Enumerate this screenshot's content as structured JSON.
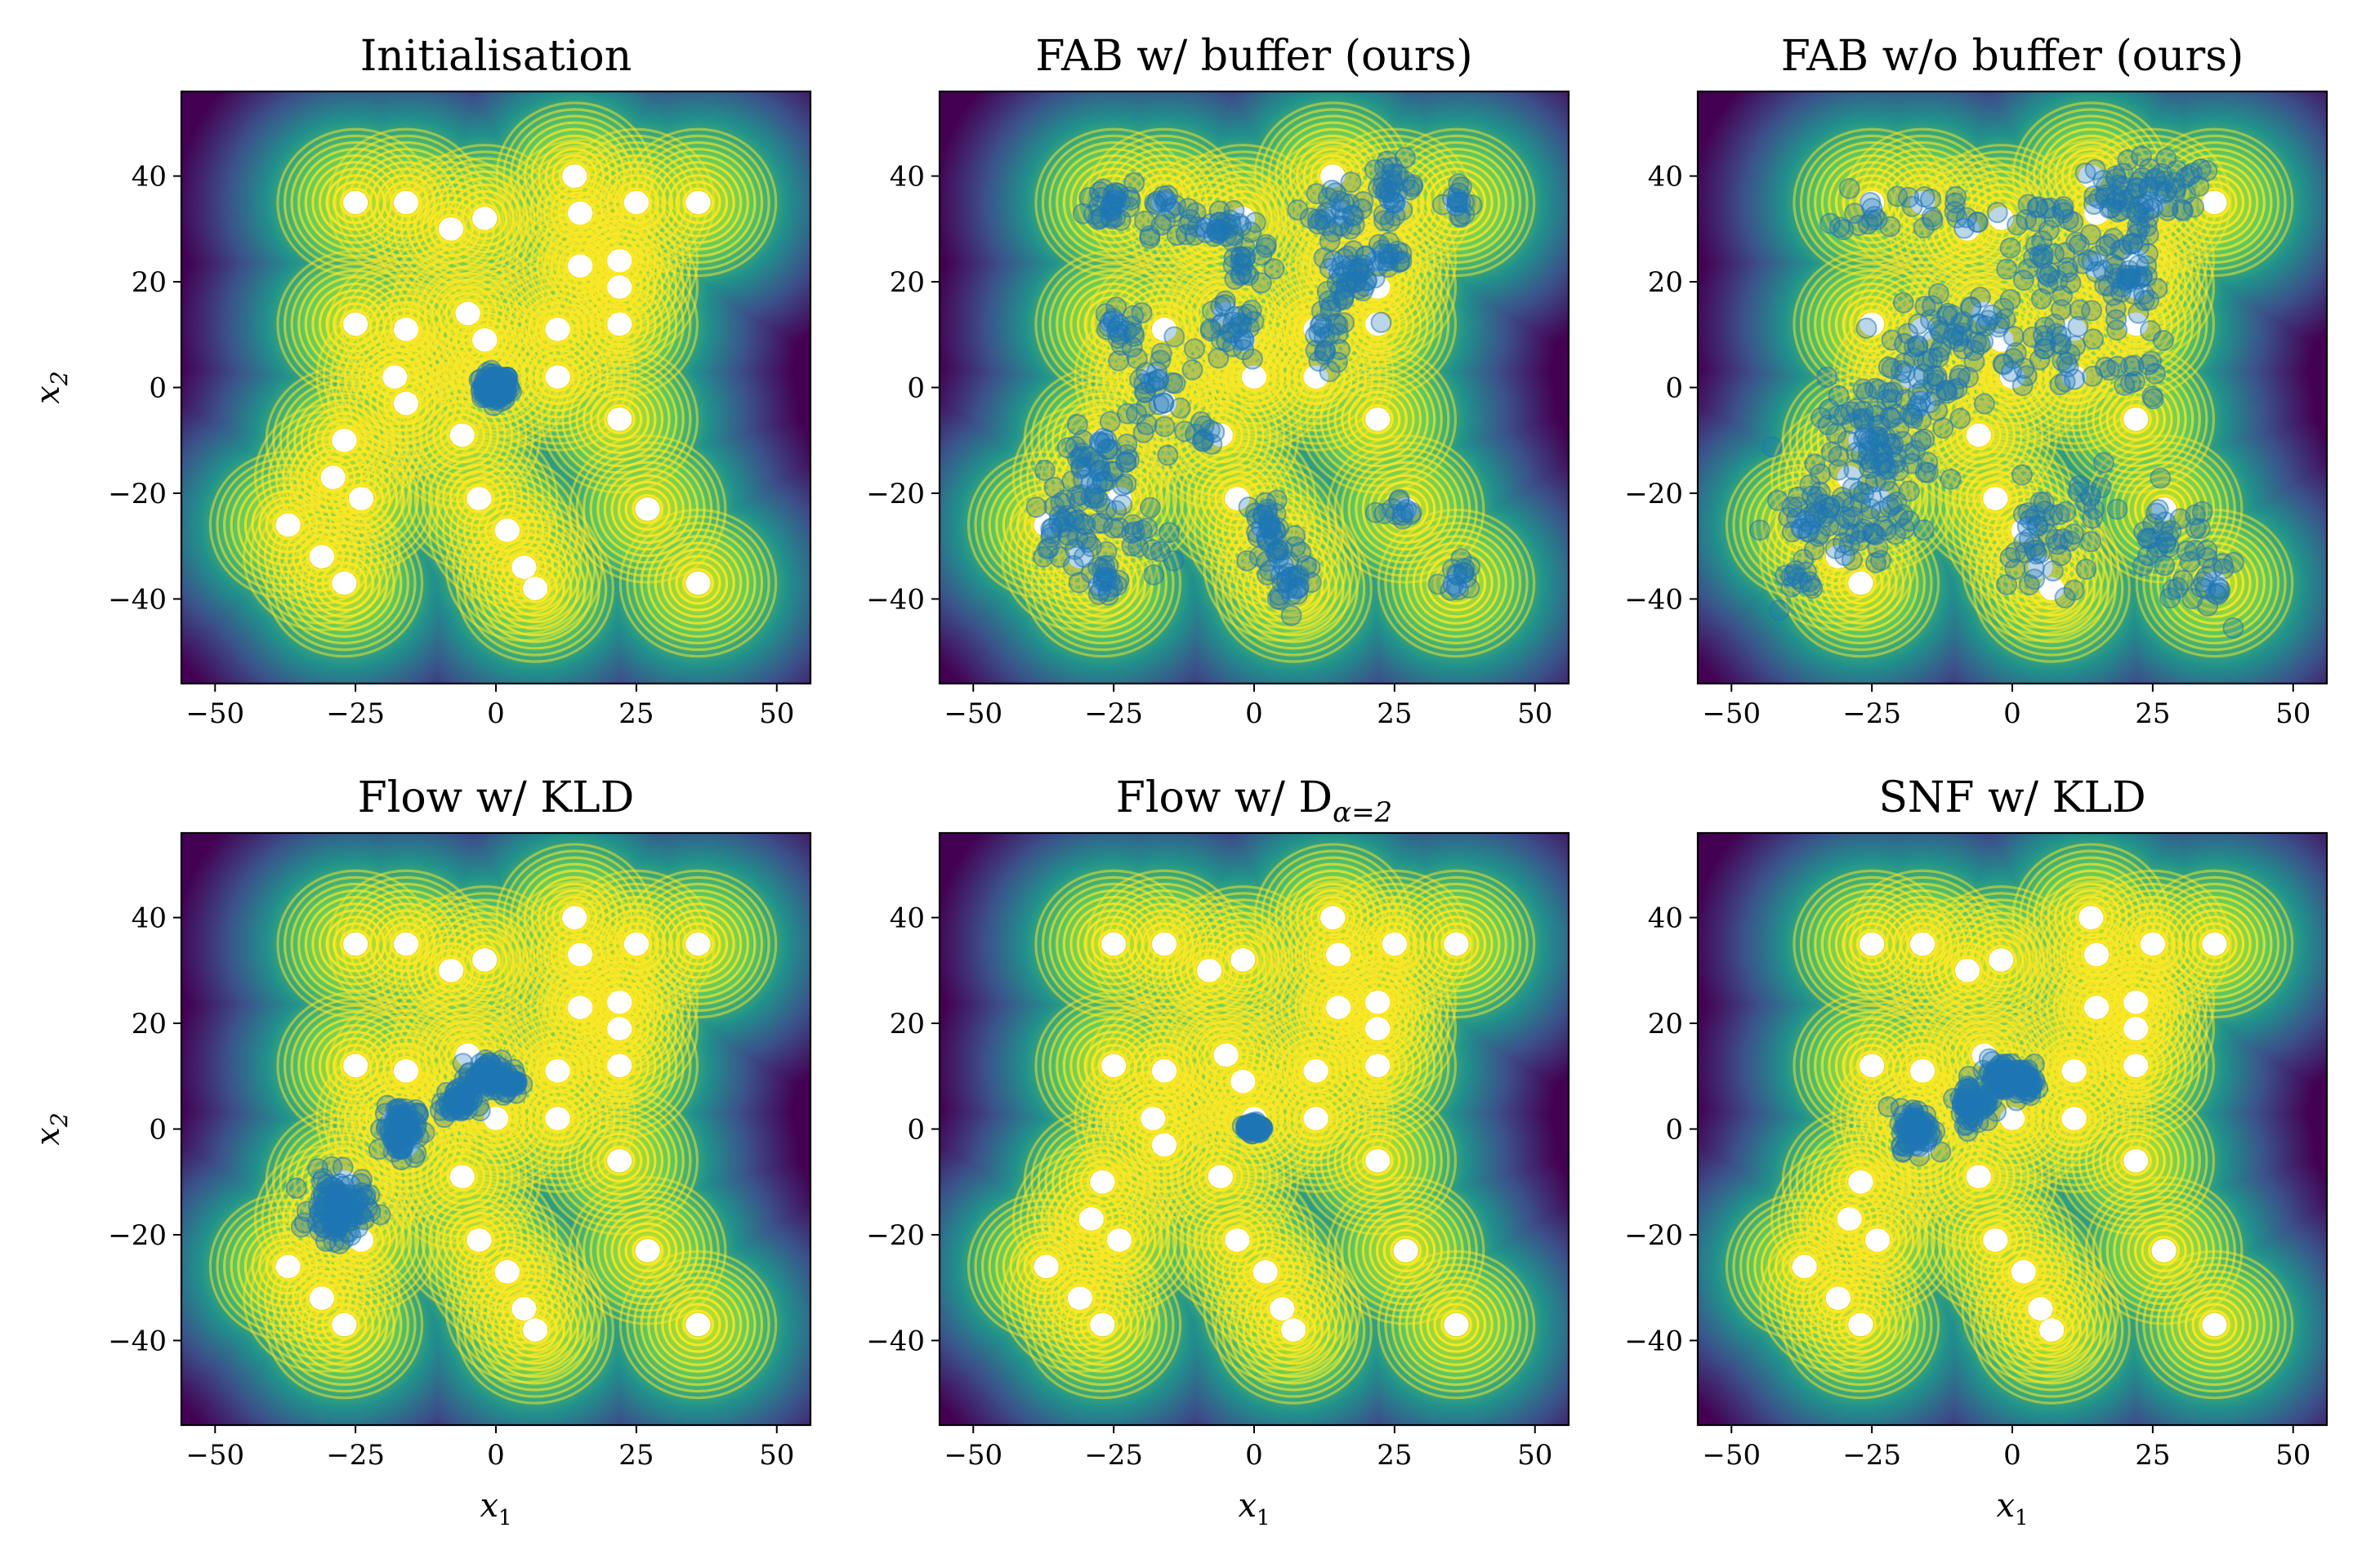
{
  "colors": {
    "bg_low": "#440154",
    "bg_mid": "#21918c",
    "bg_high": "#7ad151",
    "contour": "#fde725",
    "samples": "#1f77b4"
  },
  "target_modes": [
    [
      -25,
      35
    ],
    [
      -16,
      35
    ],
    [
      -8,
      30
    ],
    [
      -2,
      32
    ],
    [
      14,
      40
    ],
    [
      15,
      33
    ],
    [
      25,
      35
    ],
    [
      36,
      35
    ],
    [
      15,
      23
    ],
    [
      22,
      19
    ],
    [
      22,
      24
    ],
    [
      -25,
      12
    ],
    [
      -16,
      11
    ],
    [
      -5,
      14
    ],
    [
      -2,
      9
    ],
    [
      11,
      11
    ],
    [
      22,
      12
    ],
    [
      -18,
      2
    ],
    [
      -16,
      -3
    ],
    [
      0,
      2
    ],
    [
      11,
      2
    ],
    [
      -6,
      -9
    ],
    [
      22,
      -6
    ],
    [
      -27,
      -10
    ],
    [
      -29,
      -17
    ],
    [
      -24,
      -21
    ],
    [
      -37,
      -26
    ],
    [
      -31,
      -32
    ],
    [
      -27,
      -37
    ],
    [
      -3,
      -21
    ],
    [
      2,
      -27
    ],
    [
      5,
      -34
    ],
    [
      7,
      -38
    ],
    [
      27,
      -23
    ],
    [
      36,
      -37
    ]
  ],
  "chart_data": [
    {
      "type": "scatter",
      "title": "Initialisation",
      "xlabel": "",
      "ylabel": "x2",
      "xlim": [
        -56,
        56
      ],
      "ylim": [
        -56,
        56
      ],
      "xticks": [
        -50,
        -25,
        0,
        25,
        50
      ],
      "yticks": [
        -40,
        -20,
        0,
        20,
        40
      ],
      "samples": {
        "kind": "blobs",
        "clusters": [
          {
            "x": 0,
            "y": 0,
            "sx": 1.3,
            "sy": 1.3,
            "n": 140
          }
        ]
      }
    },
    {
      "type": "scatter",
      "title": "FAB w/ buffer (ours)",
      "xlabel": "",
      "ylabel": "",
      "xlim": [
        -56,
        56
      ],
      "ylim": [
        -56,
        56
      ],
      "xticks": [
        -50,
        -25,
        0,
        25,
        50
      ],
      "yticks": [
        -40,
        -20,
        0,
        20,
        40
      ],
      "samples": {
        "kind": "blobs",
        "clusters": [
          {
            "x": -25,
            "y": 35,
            "sx": 2.5,
            "sy": 2.5,
            "n": 30
          },
          {
            "x": -16,
            "y": 34,
            "sx": 2.5,
            "sy": 2.5,
            "n": 20
          },
          {
            "x": -6,
            "y": 30,
            "sx": 3,
            "sy": 1.5,
            "n": 30
          },
          {
            "x": -2,
            "y": 23,
            "sx": 2,
            "sy": 2,
            "n": 18
          },
          {
            "x": 15,
            "y": 33,
            "sx": 2.5,
            "sy": 2.5,
            "n": 30
          },
          {
            "x": 25,
            "y": 38,
            "sx": 2,
            "sy": 2.5,
            "n": 30
          },
          {
            "x": 36,
            "y": 35,
            "sx": 1.5,
            "sy": 1.5,
            "n": 15
          },
          {
            "x": 17,
            "y": 20,
            "sx": 2.5,
            "sy": 3,
            "n": 40
          },
          {
            "x": 24,
            "y": 25,
            "sx": 2,
            "sy": 2,
            "n": 20
          },
          {
            "x": -24,
            "y": 11,
            "sx": 2.5,
            "sy": 2,
            "n": 20
          },
          {
            "x": -4,
            "y": 10,
            "sx": 2.5,
            "sy": 3,
            "n": 30
          },
          {
            "x": 13,
            "y": 8,
            "sx": 2,
            "sy": 3,
            "n": 20
          },
          {
            "x": -17,
            "y": 0,
            "sx": 2.5,
            "sy": 5,
            "n": 30
          },
          {
            "x": -9,
            "y": -8,
            "sx": 1.5,
            "sy": 1.5,
            "n": 10
          },
          {
            "x": -28,
            "y": -16,
            "sx": 4,
            "sy": 4,
            "n": 60
          },
          {
            "x": -34,
            "y": -27,
            "sx": 3,
            "sy": 3,
            "n": 30
          },
          {
            "x": -27,
            "y": -37,
            "sx": 2,
            "sy": 2,
            "n": 20
          },
          {
            "x": -20,
            "y": -30,
            "sx": 3,
            "sy": 3,
            "n": 15
          },
          {
            "x": 3,
            "y": -28,
            "sx": 2.5,
            "sy": 5,
            "n": 40
          },
          {
            "x": 7,
            "y": -36,
            "sx": 2,
            "sy": 2.5,
            "n": 25
          },
          {
            "x": 26,
            "y": -24,
            "sx": 1.5,
            "sy": 1.5,
            "n": 12
          },
          {
            "x": 36,
            "y": -36,
            "sx": 1.5,
            "sy": 2,
            "n": 15
          }
        ]
      }
    },
    {
      "type": "scatter",
      "title": "FAB w/o buffer (ours)",
      "xlabel": "",
      "ylabel": "",
      "xlim": [
        -56,
        56
      ],
      "ylim": [
        -56,
        56
      ],
      "xticks": [
        -50,
        -25,
        0,
        25,
        50
      ],
      "yticks": [
        -40,
        -20,
        0,
        20,
        40
      ],
      "samples": {
        "kind": "blobs",
        "clusters": [
          {
            "x": -25,
            "y": 34,
            "sx": 3,
            "sy": 2.5,
            "n": 15
          },
          {
            "x": -10,
            "y": 34,
            "sx": 4,
            "sy": 2,
            "n": 15
          },
          {
            "x": 5,
            "y": 32,
            "sx": 4,
            "sy": 2,
            "n": 15
          },
          {
            "x": 18,
            "y": 36,
            "sx": 4,
            "sy": 3,
            "n": 40
          },
          {
            "x": 28,
            "y": 38,
            "sx": 3,
            "sy": 3,
            "n": 30
          },
          {
            "x": 20,
            "y": 22,
            "sx": 3,
            "sy": 5,
            "n": 50
          },
          {
            "x": 8,
            "y": 22,
            "sx": 4,
            "sy": 3,
            "n": 25
          },
          {
            "x": -8,
            "y": 10,
            "sx": 6,
            "sy": 5,
            "n": 60
          },
          {
            "x": 8,
            "y": 8,
            "sx": 4,
            "sy": 4,
            "n": 30
          },
          {
            "x": -18,
            "y": 0,
            "sx": 5,
            "sy": 5,
            "n": 50
          },
          {
            "x": -24,
            "y": -12,
            "sx": 5,
            "sy": 5,
            "n": 80
          },
          {
            "x": -33,
            "y": -26,
            "sx": 5,
            "sy": 4,
            "n": 50
          },
          {
            "x": -24,
            "y": -26,
            "sx": 3,
            "sy": 3,
            "n": 20
          },
          {
            "x": 5,
            "y": -30,
            "sx": 3,
            "sy": 6,
            "n": 40
          },
          {
            "x": 14,
            "y": -22,
            "sx": 2,
            "sy": 3,
            "n": 10
          },
          {
            "x": 28,
            "y": -28,
            "sx": 4,
            "sy": 4,
            "n": 30
          },
          {
            "x": 36,
            "y": -38,
            "sx": 3,
            "sy": 3,
            "n": 20
          },
          {
            "x": 22,
            "y": 2,
            "sx": 3,
            "sy": 3,
            "n": 15
          },
          {
            "x": -38,
            "y": -38,
            "sx": 3,
            "sy": 3,
            "n": 10
          }
        ]
      }
    },
    {
      "type": "scatter",
      "title": "Flow w/ KLD",
      "xlabel": "x1",
      "ylabel": "x2",
      "xlim": [
        -56,
        56
      ],
      "ylim": [
        -56,
        56
      ],
      "xticks": [
        -50,
        -25,
        0,
        25,
        50
      ],
      "yticks": [
        -40,
        -20,
        0,
        20,
        40
      ],
      "samples": {
        "kind": "blobs",
        "clusters": [
          {
            "x": -28,
            "y": -15,
            "sx": 2.5,
            "sy": 3,
            "n": 120
          },
          {
            "x": -17,
            "y": 0,
            "sx": 1.5,
            "sy": 2.5,
            "n": 80
          },
          {
            "x": -7,
            "y": 5,
            "sx": 1.5,
            "sy": 1.5,
            "n": 50
          },
          {
            "x": -2,
            "y": 10,
            "sx": 1.5,
            "sy": 1.5,
            "n": 50
          },
          {
            "x": 2,
            "y": 9,
            "sx": 1.2,
            "sy": 1.2,
            "n": 40
          }
        ]
      }
    },
    {
      "type": "scatter",
      "title": "Flow w/ D",
      "title_sub": "α=2",
      "xlabel": "x1",
      "ylabel": "",
      "xlim": [
        -56,
        56
      ],
      "ylim": [
        -56,
        56
      ],
      "xticks": [
        -50,
        -25,
        0,
        25,
        50
      ],
      "yticks": [
        -40,
        -20,
        0,
        20,
        40
      ],
      "samples": {
        "kind": "blobs",
        "clusters": [
          {
            "x": 0,
            "y": 0.3,
            "sx": 0.8,
            "sy": 0.5,
            "n": 100
          }
        ]
      }
    },
    {
      "type": "scatter",
      "title": "SNF w/ KLD",
      "xlabel": "x1",
      "ylabel": "",
      "xlim": [
        -56,
        56
      ],
      "ylim": [
        -56,
        56
      ],
      "xticks": [
        -50,
        -25,
        0,
        25,
        50
      ],
      "yticks": [
        -40,
        -20,
        0,
        20,
        40
      ],
      "samples": {
        "kind": "blobs",
        "clusters": [
          {
            "x": -17,
            "y": 0,
            "sx": 1.5,
            "sy": 2,
            "n": 80
          },
          {
            "x": -7,
            "y": 5,
            "sx": 1.5,
            "sy": 2,
            "n": 70
          },
          {
            "x": -2,
            "y": 10,
            "sx": 1.5,
            "sy": 1.5,
            "n": 70
          },
          {
            "x": 2,
            "y": 9,
            "sx": 1.2,
            "sy": 1.2,
            "n": 50
          }
        ]
      }
    }
  ]
}
